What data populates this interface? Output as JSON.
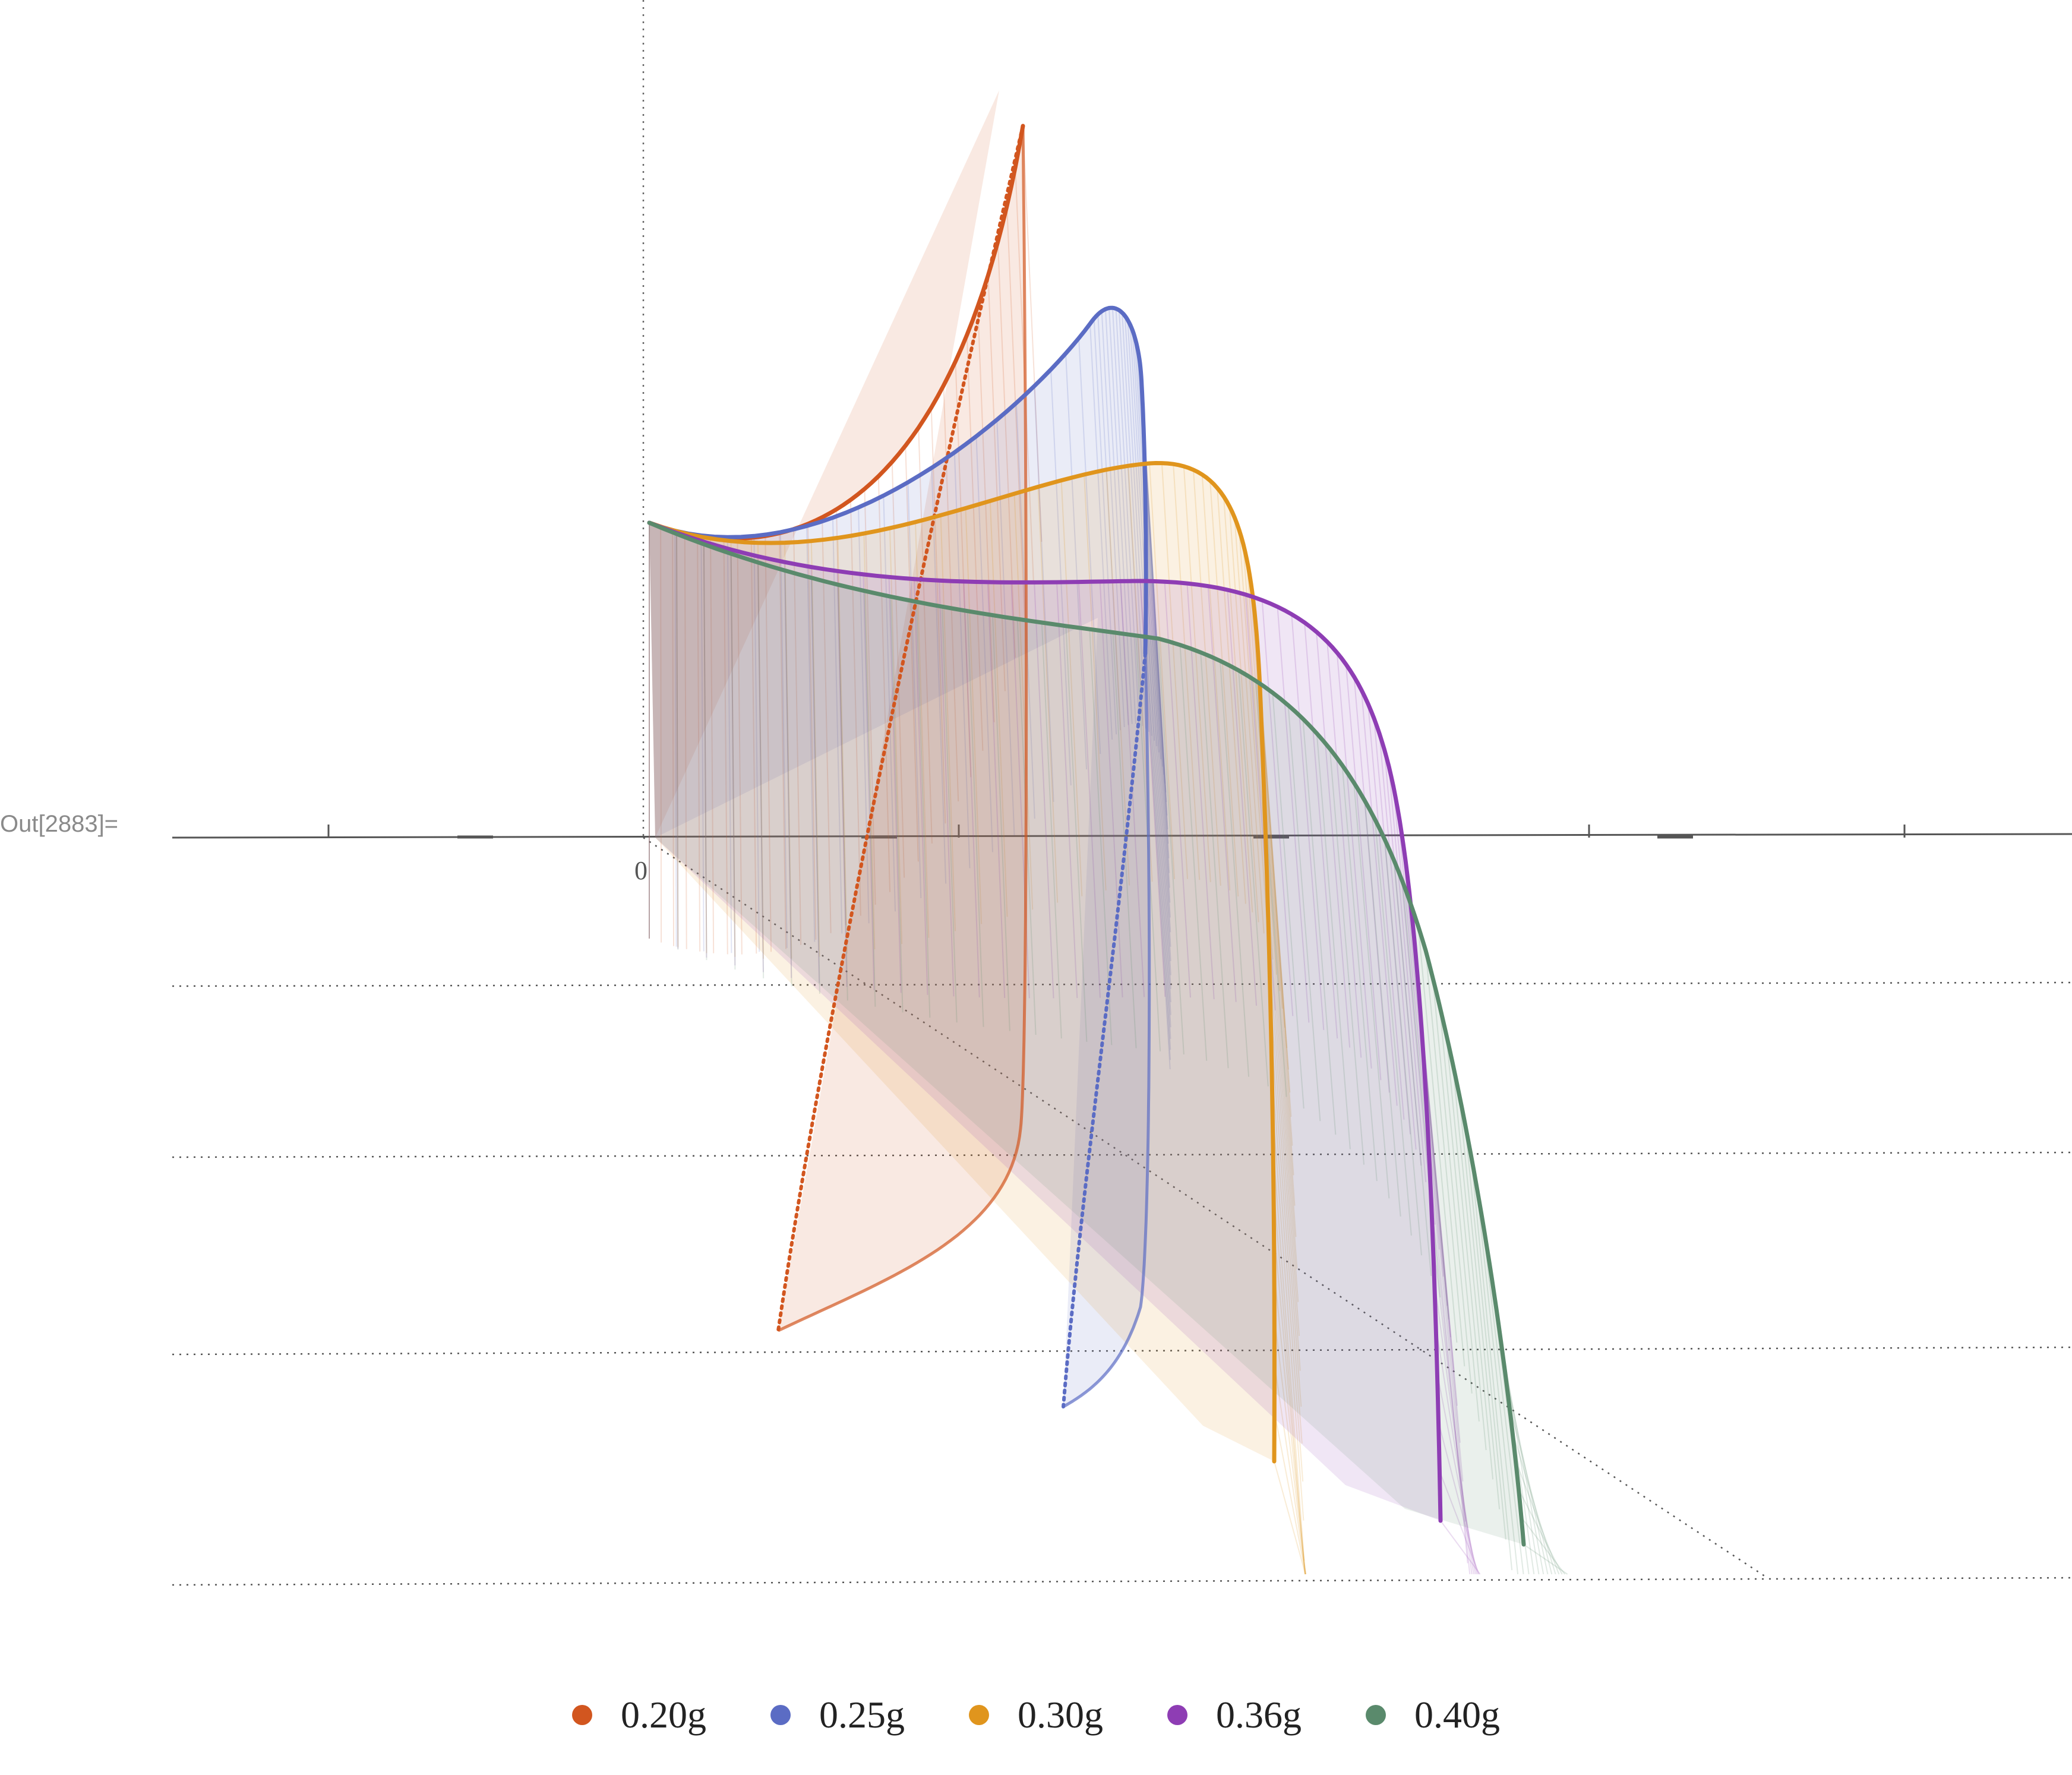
{
  "cell_label": "Out[2883]=",
  "chart_data": {
    "type": "line",
    "tick_labels": [
      "0"
    ],
    "series": [
      {
        "name": "0.20g",
        "color": "#d2561f"
      },
      {
        "name": "0.25g",
        "color": "#5b6cc4"
      },
      {
        "name": "0.30g",
        "color": "#e0951d"
      },
      {
        "name": "0.36g",
        "color": "#8e3db4"
      },
      {
        "name": "0.40g",
        "color": "#5a8a6c"
      }
    ],
    "legend_position": "bottom"
  },
  "legend": {
    "items": [
      {
        "label": "0.20g",
        "color": "#d2561f"
      },
      {
        "label": "0.25g",
        "color": "#5b6cc4"
      },
      {
        "label": "0.30g",
        "color": "#e0951d"
      },
      {
        "label": "0.36g",
        "color": "#8e3db4"
      },
      {
        "label": "0.40g",
        "color": "#5a8a6c"
      }
    ]
  }
}
